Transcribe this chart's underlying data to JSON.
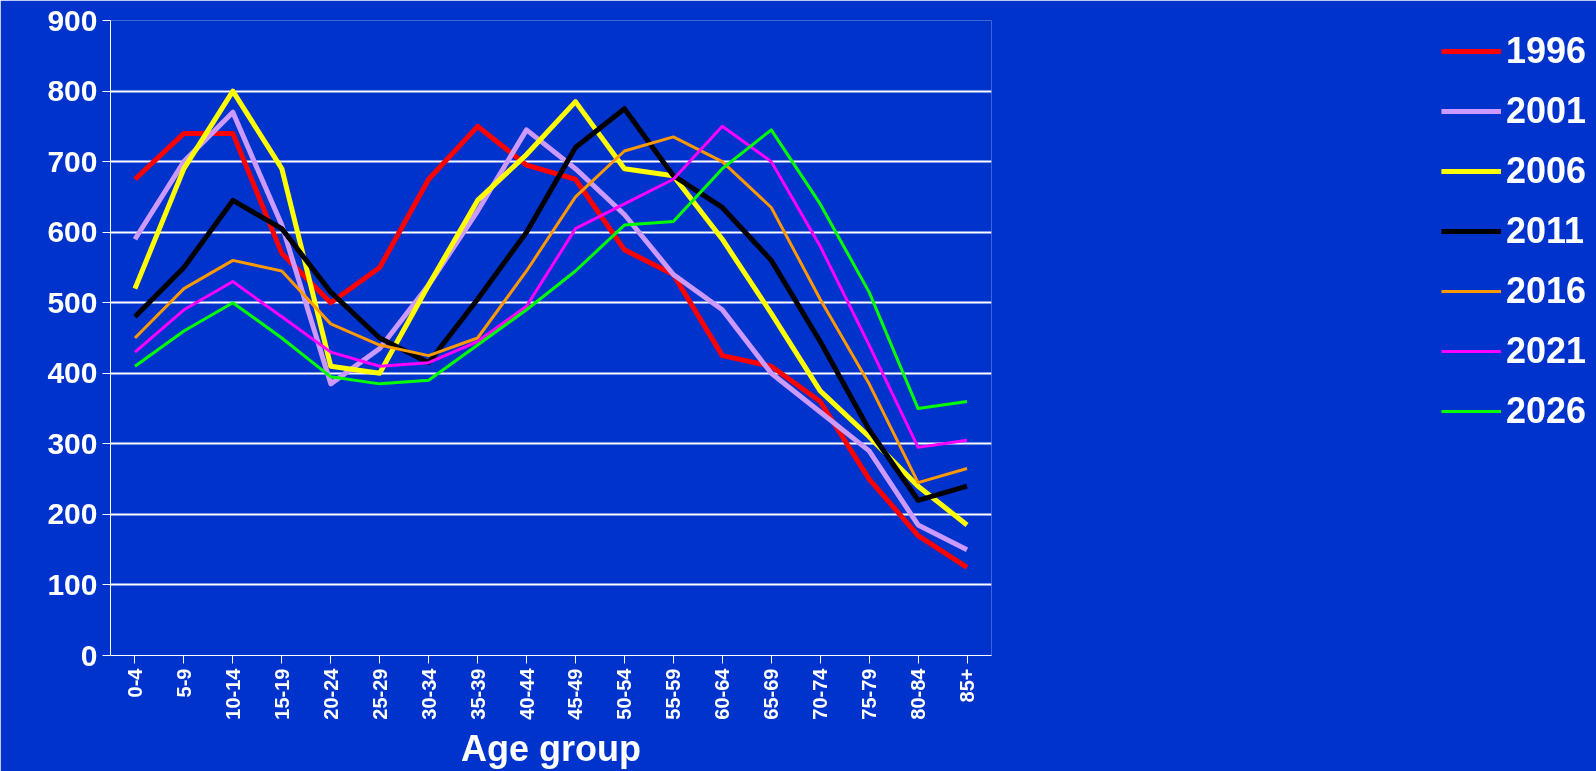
{
  "chart_data": {
    "type": "line",
    "xlabel": "Age group",
    "categories": [
      "0-4",
      "5-9",
      "10-14",
      "15-19",
      "20-24",
      "25-29",
      "30-34",
      "35-39",
      "40-44",
      "45-49",
      "50-54",
      "55-59",
      "60-64",
      "65-69",
      "70-74",
      "75-79",
      "80-84",
      "85+"
    ],
    "ylim": [
      0,
      900
    ],
    "yticks": [
      0,
      100,
      200,
      300,
      400,
      500,
      600,
      700,
      800,
      900
    ],
    "grid": "y",
    "legend": "right",
    "marker": "none",
    "line_style": "solid",
    "series": [
      {
        "name": "1996",
        "color": "#ff0000",
        "values": [
          675,
          740,
          740,
          570,
          500,
          550,
          675,
          750,
          695,
          675,
          575,
          540,
          425,
          410,
          360,
          250,
          170,
          125
        ]
      },
      {
        "name": "2001",
        "color": "#cc99ff",
        "values": [
          590,
          700,
          770,
          610,
          385,
          435,
          525,
          630,
          745,
          690,
          625,
          540,
          490,
          400,
          345,
          290,
          185,
          150
        ]
      },
      {
        "name": "2006",
        "color": "#ffff00",
        "values": [
          520,
          690,
          800,
          690,
          410,
          400,
          525,
          645,
          710,
          785,
          690,
          680,
          590,
          485,
          375,
          310,
          240,
          185
        ]
      },
      {
        "name": "2011",
        "color": "#000000",
        "values": [
          480,
          550,
          645,
          605,
          515,
          450,
          415,
          505,
          600,
          720,
          775,
          680,
          635,
          560,
          445,
          320,
          220,
          240
        ]
      },
      {
        "name": "2016",
        "color": "#ff9900",
        "values": [
          450,
          520,
          560,
          545,
          470,
          440,
          425,
          450,
          545,
          650,
          715,
          735,
          700,
          635,
          505,
          385,
          245,
          265
        ]
      },
      {
        "name": "2021",
        "color": "#ff00ff",
        "values": [
          430,
          490,
          530,
          480,
          430,
          410,
          415,
          445,
          495,
          605,
          640,
          675,
          750,
          700,
          580,
          440,
          295,
          305
        ]
      },
      {
        "name": "2026",
        "color": "#00ff00",
        "values": [
          410,
          460,
          500,
          450,
          395,
          385,
          390,
          440,
          490,
          545,
          610,
          615,
          690,
          745,
          640,
          515,
          350,
          360
        ]
      }
    ]
  }
}
